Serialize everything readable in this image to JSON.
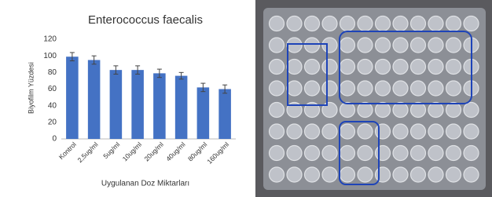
{
  "chart_data": {
    "type": "bar",
    "title": "Enterococcus faecalis",
    "y_label": "Biyofilm Yüzdesi",
    "x_label": "Uygulanan Doz Miktarları",
    "categories": [
      "Kontrol",
      "2,5ug/ml",
      "5ug/ml",
      "10ug/ml",
      "20ug/ml",
      "40ug/ml",
      "80ug/ml",
      "160ug/ml"
    ],
    "values": [
      99,
      95,
      83,
      83,
      79,
      76,
      62,
      60
    ],
    "errors": [
      5,
      5,
      5,
      5,
      5,
      4,
      5,
      5
    ],
    "color": "#4472c4",
    "ylim": [
      0,
      120
    ],
    "yticks": [
      0,
      20,
      40,
      60,
      80,
      100,
      120
    ],
    "grid": false
  }
}
